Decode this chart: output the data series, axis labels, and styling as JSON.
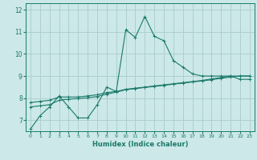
{
  "title": "",
  "xlabel": "Humidex (Indice chaleur)",
  "xlim": [
    -0.5,
    23.5
  ],
  "ylim": [
    6.5,
    12.3
  ],
  "yticks": [
    7,
    8,
    9,
    10,
    11,
    12
  ],
  "xticks": [
    0,
    1,
    2,
    3,
    4,
    5,
    6,
    7,
    8,
    9,
    10,
    11,
    12,
    13,
    14,
    15,
    16,
    17,
    18,
    19,
    20,
    21,
    22,
    23
  ],
  "bg_color": "#cce8e8",
  "grid_color": "#aacccc",
  "line_color": "#1a7a6a",
  "line1_x": [
    0,
    1,
    2,
    3,
    4,
    5,
    6,
    7,
    8,
    9,
    10,
    11,
    12,
    13,
    14,
    15,
    16,
    17,
    18,
    19,
    20,
    21,
    22,
    23
  ],
  "line1_y": [
    6.6,
    7.2,
    7.6,
    8.1,
    7.6,
    7.1,
    7.1,
    7.7,
    8.5,
    8.3,
    11.1,
    10.75,
    11.7,
    10.8,
    10.6,
    9.7,
    9.4,
    9.1,
    9.0,
    9.0,
    9.0,
    9.0,
    8.85,
    8.85
  ],
  "line2_x": [
    0,
    1,
    2,
    3,
    4,
    5,
    6,
    7,
    8,
    9,
    10,
    11,
    12,
    13,
    14,
    15,
    16,
    17,
    18,
    19,
    20,
    21,
    22,
    23
  ],
  "line2_y": [
    7.8,
    7.85,
    7.9,
    8.05,
    8.05,
    8.05,
    8.1,
    8.15,
    8.25,
    8.3,
    8.4,
    8.45,
    8.5,
    8.55,
    8.6,
    8.65,
    8.7,
    8.75,
    8.8,
    8.87,
    8.93,
    9.0,
    9.0,
    9.0
  ],
  "line3_x": [
    0,
    1,
    2,
    3,
    4,
    5,
    6,
    7,
    8,
    9,
    10,
    11,
    12,
    13,
    14,
    15,
    16,
    17,
    18,
    19,
    20,
    21,
    22,
    23
  ],
  "line3_y": [
    7.6,
    7.65,
    7.7,
    7.9,
    7.95,
    7.98,
    8.02,
    8.07,
    8.18,
    8.27,
    8.38,
    8.43,
    8.48,
    8.53,
    8.58,
    8.63,
    8.68,
    8.73,
    8.78,
    8.83,
    8.9,
    8.95,
    9.0,
    9.0
  ]
}
